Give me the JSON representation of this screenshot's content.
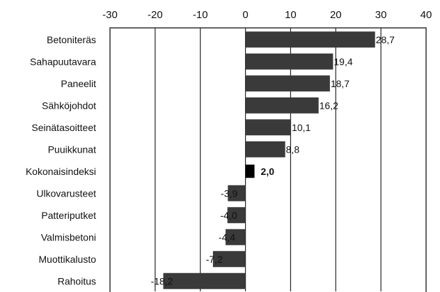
{
  "chart_data": {
    "type": "bar",
    "orientation": "horizontal",
    "title": "",
    "xlabel": "",
    "ylabel": "",
    "xlim": [
      -30,
      40
    ],
    "xticks": [
      "-30",
      "-20",
      "-10",
      "0",
      "10",
      "20",
      "30",
      "40"
    ],
    "grid": "vertical",
    "categories": [
      "Betoniteräs",
      "Sahapuutavara",
      "Paneelit",
      "Sähköjohdot",
      "Seinätasoitteet",
      "Puuikkunat",
      "Kokonaisindeksi",
      "Ulkovarusteet",
      "Patteriputket",
      "Valmisbetoni",
      "Muottikalusto",
      "Rahoitus"
    ],
    "values": [
      28.7,
      19.4,
      18.7,
      16.2,
      10.1,
      8.8,
      2.0,
      -3.9,
      -4.0,
      -4.4,
      -7.2,
      -18.2
    ],
    "value_labels": [
      "28,7",
      "19,4",
      "18,7",
      "16,2",
      "10,1",
      "8,8",
      "2,0",
      "-3,9",
      "-4,0",
      "-4,4",
      "-7,2",
      "-18,2"
    ],
    "highlight_category": "Kokonaisindeksi",
    "colors": {
      "bar": "#3a3a3a",
      "highlight": "#000000",
      "grid": "#222222"
    }
  }
}
